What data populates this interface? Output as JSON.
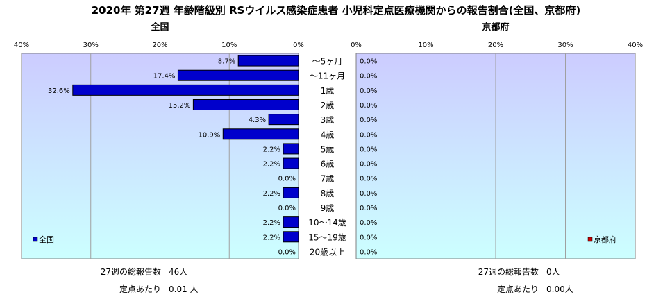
{
  "title": "2020年 第27週 年齢階級別 RSウイルス感染症患者 小児科定点医療機関からの報告割合(全国、京都府)",
  "colors": {
    "national_bar": "#0000cc",
    "kyoto_bar": "#cc0000",
    "plot_bg_top": "#ccccff",
    "plot_bg_bottom": "#ccffff"
  },
  "chart_data": [
    {
      "type": "bar",
      "orientation": "horizontal",
      "direction": "right-to-left",
      "title": "全国",
      "categories": [
        "～5ヶ月",
        "～11ヶ月",
        "1歳",
        "2歳",
        "3歳",
        "4歳",
        "5歳",
        "6歳",
        "7歳",
        "8歳",
        "9歳",
        "10～14歳",
        "15～19歳",
        "20歳以上"
      ],
      "series": [
        {
          "name": "全国",
          "values": [
            8.7,
            17.4,
            32.6,
            15.2,
            4.3,
            10.9,
            2.2,
            2.2,
            0.0,
            2.2,
            0.0,
            2.2,
            2.2,
            0.0
          ]
        }
      ],
      "value_labels": [
        "8.7%",
        "17.4%",
        "32.6%",
        "15.2%",
        "4.3%",
        "10.9%",
        "2.2%",
        "2.2%",
        "0.0%",
        "2.2%",
        "0.0%",
        "2.2%",
        "2.2%",
        "0.0%"
      ],
      "xlim": [
        0,
        40
      ],
      "xticks": [
        "40%",
        "30%",
        "20%",
        "10%",
        "0%"
      ],
      "grid": true,
      "legend": "bottom-left",
      "stats": [
        {
          "label": "27週の総報告数",
          "value": "46人"
        },
        {
          "label": "定点あたり",
          "value": "0.01 人"
        }
      ]
    },
    {
      "type": "bar",
      "orientation": "horizontal",
      "direction": "left-to-right",
      "title": "京都府",
      "categories": [
        "～5ヶ月",
        "～11ヶ月",
        "1歳",
        "2歳",
        "3歳",
        "4歳",
        "5歳",
        "6歳",
        "7歳",
        "8歳",
        "9歳",
        "10～14歳",
        "15～19歳",
        "20歳以上"
      ],
      "series": [
        {
          "name": "京都府",
          "values": [
            0,
            0,
            0,
            0,
            0,
            0,
            0,
            0,
            0,
            0,
            0,
            0,
            0,
            0
          ]
        }
      ],
      "value_labels": [
        "0.0%",
        "0.0%",
        "0.0%",
        "0.0%",
        "0.0%",
        "0.0%",
        "0.0%",
        "0.0%",
        "0.0%",
        "0.0%",
        "0.0%",
        "0.0%",
        "0.0%",
        "0.0%"
      ],
      "xlim": [
        0,
        40
      ],
      "xticks": [
        "0%",
        "10%",
        "20%",
        "30%",
        "40%"
      ],
      "grid": true,
      "legend": "bottom-right",
      "stats": [
        {
          "label": "27週の総報告数",
          "value": "0人"
        },
        {
          "label": "定点あたり",
          "value": "0.00人"
        }
      ]
    }
  ]
}
